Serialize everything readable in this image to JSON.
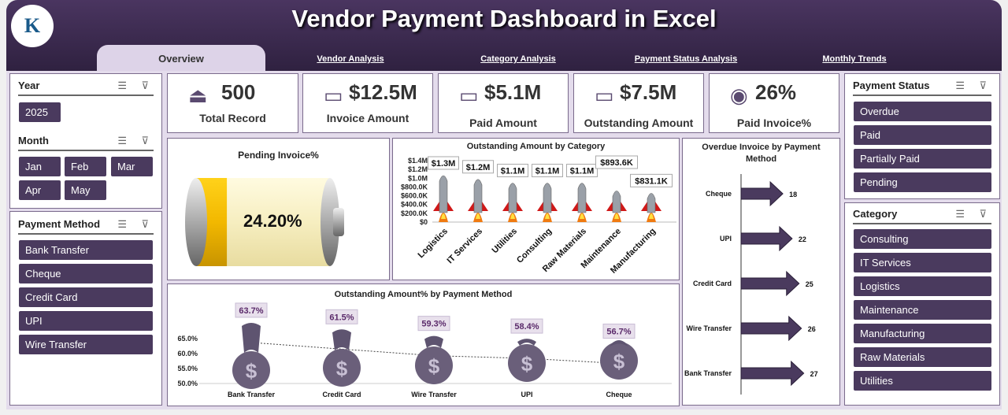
{
  "header": {
    "title": "Vendor Payment Dashboard in Excel",
    "logo_text": "K"
  },
  "tabs": [
    {
      "label": "Overview",
      "active": true
    },
    {
      "label": "Vendor Analysis"
    },
    {
      "label": "Category Analysis"
    },
    {
      "label": "Payment Status Analysis"
    },
    {
      "label": "Monthly Trends"
    }
  ],
  "filters": {
    "year": {
      "title": "Year",
      "items": [
        "2025"
      ]
    },
    "month": {
      "title": "Month",
      "items": [
        "Jan",
        "Feb",
        "Mar",
        "Apr",
        "May"
      ]
    },
    "payment_method": {
      "title": "Payment Method",
      "items": [
        "Bank Transfer",
        "Cheque",
        "Credit Card",
        "UPI",
        "Wire Transfer"
      ]
    },
    "payment_status": {
      "title": "Payment Status",
      "items": [
        "Overdue",
        "Paid",
        "Partially Paid",
        "Pending"
      ]
    },
    "category": {
      "title": "Category",
      "items": [
        "Consulting",
        "IT Services",
        "Logistics",
        "Maintenance",
        "Manufacturing",
        "Raw Materials",
        "Utilities"
      ]
    }
  },
  "kpis": [
    {
      "value": "500",
      "label": "Total Record",
      "icon": "gramophone-icon"
    },
    {
      "value": "$12.5M",
      "label": "Invoice Amount",
      "icon": "cash-icon"
    },
    {
      "value": "$5.1M",
      "label": "Paid Amount",
      "icon": "cash-icon"
    },
    {
      "value": "$7.5M",
      "label": "Outstanding Amount",
      "icon": "cash-icon"
    },
    {
      "value": "26%",
      "label": "Paid Invoice%",
      "icon": "coins-icon"
    }
  ],
  "colors": {
    "header": "#3d2b52",
    "button": "#4a3a5e",
    "background": "#e4dcec",
    "battery": "#f2c200"
  },
  "pending": {
    "title": "Pending Invoice%",
    "value": "24.20%",
    "fraction": 0.242
  },
  "chart_data": [
    {
      "type": "bar",
      "title": "Outstanding Amount by Category",
      "categories": [
        "Logistics",
        "IT Services",
        "Utilities",
        "Consulting",
        "Raw Materials",
        "Maintenance",
        "Manufacturing"
      ],
      "values": [
        1300000,
        1200000,
        1100000,
        1100000,
        1100000,
        893600,
        831100
      ],
      "data_labels": [
        "$1.3M",
        "$1.2M",
        "$1.1M",
        "$1.1M",
        "$1.1M",
        "$893.6K",
        "$831.1K"
      ],
      "yticks": [
        "$0",
        "$200.0K",
        "$400.0K",
        "$600.0K",
        "$800.0K",
        "$1.0M",
        "$1.2M",
        "$1.4M"
      ],
      "ylim": [
        0,
        1400000
      ],
      "grid": false
    },
    {
      "type": "bar",
      "orientation": "horizontal",
      "title": "Overdue Invoice by Payment Method",
      "categories": [
        "Cheque",
        "UPI",
        "Credit Card",
        "Wire Transfer",
        "Bank Transfer"
      ],
      "values": [
        18,
        22,
        25,
        26,
        27
      ]
    },
    {
      "type": "line",
      "title": "Outstanding Amount% by Payment Method",
      "categories": [
        "Bank Transfer",
        "Credit Card",
        "Wire Transfer",
        "UPI",
        "Cheque"
      ],
      "values": [
        63.7,
        61.5,
        59.3,
        58.4,
        56.7
      ],
      "data_labels": [
        "63.7%",
        "61.5%",
        "59.3%",
        "58.4%",
        "56.7%"
      ],
      "yticks": [
        "50.0%",
        "55.0%",
        "60.0%",
        "65.0%"
      ],
      "ylim": [
        50,
        65
      ]
    }
  ]
}
